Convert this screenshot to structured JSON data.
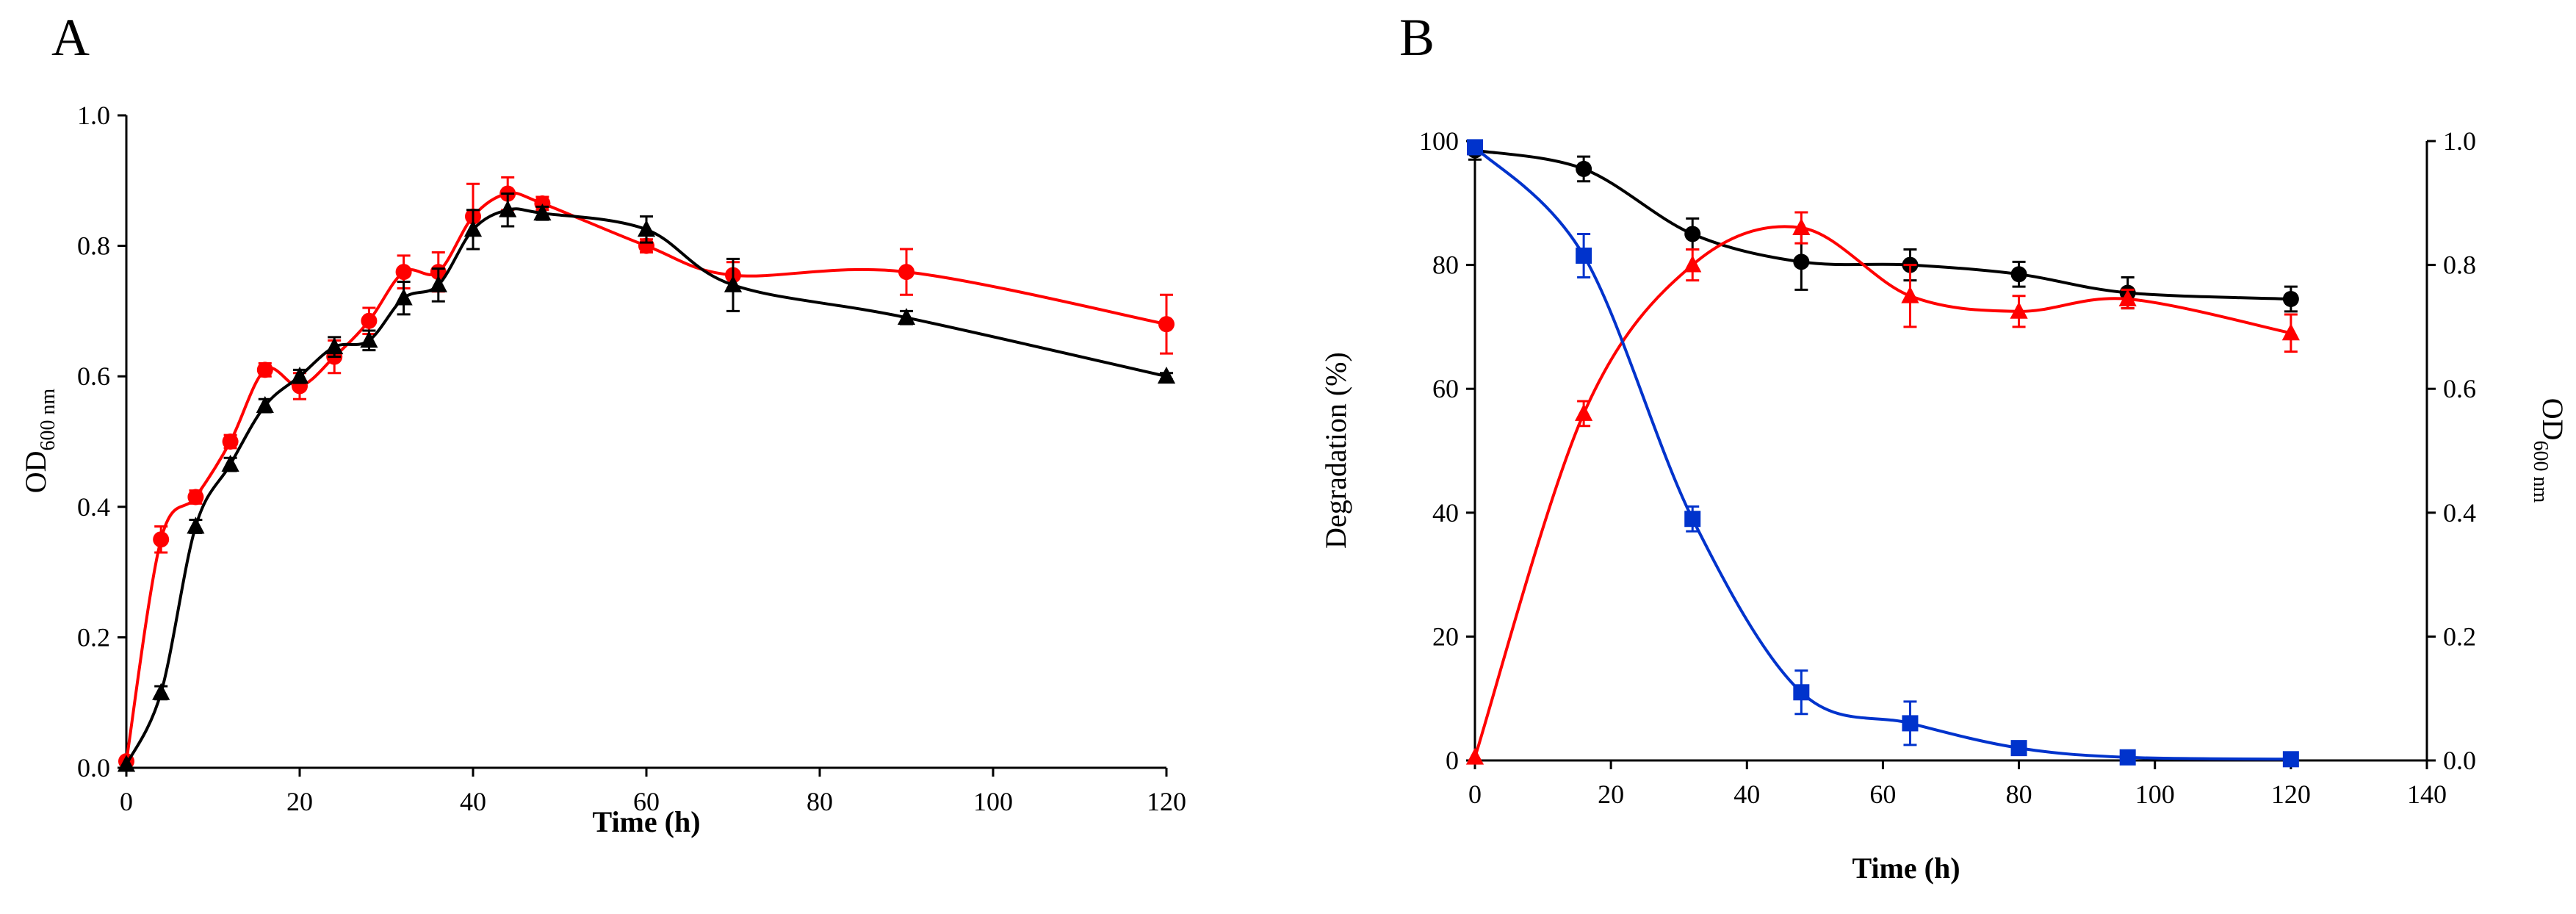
{
  "panels": {
    "a": {
      "letter": "A"
    },
    "b": {
      "letter": "B"
    }
  },
  "chart_data": [
    {
      "type": "line",
      "panel": "A",
      "title": "",
      "xlabel": "Time (h)",
      "ylabel": "OD600 nm",
      "ylabel_main": "OD",
      "ylabel_sub": "600 nm",
      "xlim": [
        0,
        120
      ],
      "ylim": [
        0,
        1.0
      ],
      "xticks": [
        0,
        20,
        40,
        60,
        80,
        100,
        120
      ],
      "yticks": [
        "0.0",
        "0.2",
        "0.4",
        "0.6",
        "0.8",
        "1.0"
      ],
      "legend": "none",
      "grid": false,
      "series": [
        {
          "color": "#ff0000",
          "marker": "circle",
          "x": [
            0,
            4,
            8,
            12,
            16,
            20,
            24,
            28,
            32,
            36,
            40,
            44,
            48,
            60,
            70,
            90,
            120
          ],
          "y": [
            0.01,
            0.35,
            0.415,
            0.5,
            0.61,
            0.585,
            0.63,
            0.685,
            0.76,
            0.76,
            0.845,
            0.88,
            0.865,
            0.8,
            0.755,
            0.76,
            0.68
          ],
          "err": [
            0.0,
            0.02,
            0.01,
            0.01,
            0.01,
            0.02,
            0.025,
            0.02,
            0.025,
            0.03,
            0.05,
            0.025,
            0.01,
            0.01,
            0.02,
            0.035,
            0.045
          ]
        },
        {
          "color": "#000000",
          "marker": "triangle",
          "x": [
            0,
            4,
            8,
            12,
            16,
            20,
            24,
            28,
            32,
            36,
            40,
            44,
            48,
            60,
            70,
            90,
            120
          ],
          "y": [
            0.005,
            0.115,
            0.37,
            0.465,
            0.555,
            0.6,
            0.645,
            0.655,
            0.72,
            0.74,
            0.825,
            0.855,
            0.85,
            0.825,
            0.74,
            0.69,
            0.6
          ],
          "err": [
            0.0,
            0.01,
            0.01,
            0.01,
            0.01,
            0.01,
            0.015,
            0.015,
            0.025,
            0.025,
            0.03,
            0.025,
            0.01,
            0.02,
            0.04,
            0.01,
            0.005
          ]
        }
      ]
    },
    {
      "type": "line",
      "panel": "B",
      "title": "",
      "xlabel": "Time (h)",
      "ylabel": "Degradation (%)",
      "y2label": "OD600 nm",
      "y2label_main": "OD",
      "y2label_sub": "600 nm",
      "xlim": [
        0,
        140
      ],
      "ylim": [
        0,
        100
      ],
      "y2lim": [
        0,
        1.0
      ],
      "xticks": [
        0,
        20,
        40,
        60,
        80,
        100,
        120,
        140
      ],
      "yticks": [
        "0",
        "20",
        "40",
        "60",
        "80",
        "100"
      ],
      "y2ticks": [
        "0.0",
        "0.2",
        "0.4",
        "0.6",
        "0.8",
        "1.0"
      ],
      "legend": "none",
      "grid": false,
      "series": [
        {
          "color": "#000000",
          "marker": "circle",
          "axis": "left",
          "x": [
            0,
            16,
            32,
            48,
            64,
            80,
            96,
            120
          ],
          "y": [
            98.5,
            95.5,
            85,
            80.5,
            80,
            78.5,
            75.5,
            74.5
          ],
          "err": [
            1.5,
            2,
            2.5,
            4.5,
            2.5,
            2,
            2.5,
            2
          ]
        },
        {
          "color": "#ff0000",
          "marker": "triangle",
          "axis": "left",
          "x": [
            0,
            16,
            32,
            48,
            64,
            80,
            96,
            120
          ],
          "y": [
            0.5,
            56,
            80,
            86,
            75,
            72.5,
            74.5,
            69
          ],
          "err": [
            0,
            2,
            2.5,
            2.5,
            5,
            2.5,
            1.5,
            3
          ]
        },
        {
          "color": "#0033cc",
          "marker": "square",
          "axis": "left",
          "x": [
            0,
            16,
            32,
            48,
            64,
            80,
            96,
            120
          ],
          "y": [
            99,
            81.5,
            39,
            11,
            6,
            2,
            0.5,
            0.2
          ],
          "err": [
            1,
            3.5,
            2,
            3.5,
            3.5,
            0.5,
            0.5,
            0.2
          ]
        }
      ]
    }
  ]
}
